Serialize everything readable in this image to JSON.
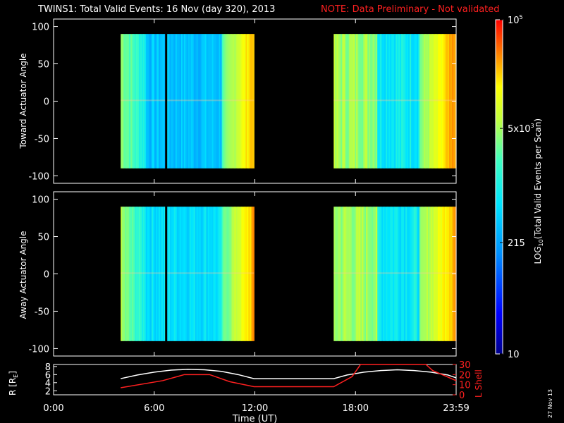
{
  "header": {
    "title": "TWINS1: Total Valid Events: 16 Nov (day 320), 2013",
    "note": "NOTE: Data Preliminary - Not validated"
  },
  "colors": {
    "title": "#ffffff",
    "note": "#ff2020",
    "r_line": "#ffffff",
    "lshell_line": "#ff2020",
    "background": "#000000"
  },
  "stamp": "27 Nov 13",
  "chart_data": [
    {
      "type": "heatmap",
      "panel": "toward",
      "ylabel": "Toward Actuator Angle",
      "x_unit": "hours UT",
      "xlim": [
        0,
        24
      ],
      "ylim": [
        -110,
        110
      ],
      "yticks": [
        -100,
        -50,
        0,
        50,
        100
      ],
      "data_blocks": [
        {
          "x_start": 4.0,
          "x_end": 11.95,
          "y_range": [
            -90,
            90
          ]
        },
        {
          "x_start": 16.7,
          "x_end": 24.0,
          "y_range": [
            -90,
            90
          ]
        }
      ],
      "gaps": [
        {
          "x": 6.65,
          "width_hours": 0.12
        }
      ],
      "xticks": [
        "0:00",
        "6:00",
        "12:00",
        "18:00",
        "23:59"
      ]
    },
    {
      "type": "heatmap",
      "panel": "away",
      "ylabel": "Away Actuator Angle",
      "x_unit": "hours UT",
      "xlim": [
        0,
        24
      ],
      "ylim": [
        -110,
        110
      ],
      "yticks": [
        -100,
        -50,
        0,
        50,
        100
      ],
      "data_blocks": [
        {
          "x_start": 4.0,
          "x_end": 11.95,
          "y_range": [
            -90,
            90
          ]
        },
        {
          "x_start": 16.7,
          "x_end": 24.0,
          "y_range": [
            -90,
            90
          ]
        }
      ],
      "gaps": [
        {
          "x": 6.65,
          "width_hours": 0.12
        }
      ],
      "xticks": [
        "0:00",
        "6:00",
        "12:00",
        "18:00",
        "23:59"
      ]
    },
    {
      "type": "line",
      "panel": "orbit",
      "xlabel": "Time (UT)",
      "xticks": [
        "0:00",
        "6:00",
        "12:00",
        "18:00",
        "23:59"
      ],
      "xlim": [
        0,
        24
      ],
      "ylabel_left": "R [R",
      "ylabel_left_sub": "E",
      "ylabel_left_end": "]",
      "ylim_left": [
        1,
        8.5
      ],
      "yticks_left": [
        2,
        4,
        6,
        8
      ],
      "ylabel_right": "L Shell",
      "ylim_right": [
        0,
        30
      ],
      "yticks_right": [
        0,
        10,
        20,
        30
      ],
      "series": [
        {
          "name": "R",
          "axis": "left",
          "x": [
            4.0,
            5.0,
            6.0,
            7.0,
            8.0,
            9.0,
            10.0,
            11.0,
            11.95,
            16.7,
            17.5,
            18.5,
            19.5,
            20.5,
            21.5,
            22.5,
            23.5,
            24.0
          ],
          "y": [
            5.0,
            5.9,
            6.6,
            7.1,
            7.3,
            7.2,
            6.8,
            6.0,
            5.0,
            5.0,
            5.9,
            6.6,
            7.0,
            7.2,
            7.0,
            6.6,
            5.9,
            5.2
          ]
        },
        {
          "name": "L Shell",
          "axis": "right",
          "x": [
            4.0,
            6.5,
            7.8,
            9.3,
            10.5,
            11.95,
            16.7,
            17.8,
            18.3,
            22.2,
            22.6,
            24.0
          ],
          "y": [
            7,
            14,
            20,
            20,
            13,
            8,
            8,
            18,
            30,
            30,
            24,
            14
          ]
        }
      ]
    },
    {
      "type": "heatmap",
      "panel": "colorbar",
      "label": "LOG",
      "label_sub": "10",
      "label_rest": "(Total Valid Events per Scan)",
      "scale": "log",
      "range": [
        10,
        100000
      ],
      "tick_labels": [
        {
          "value": 10,
          "text": "10"
        },
        {
          "value": 215,
          "text": "215"
        },
        {
          "value": 5000,
          "base": "5x10",
          "exp": "3"
        },
        {
          "value": 100000,
          "base": "10",
          "exp": "5"
        }
      ]
    }
  ]
}
